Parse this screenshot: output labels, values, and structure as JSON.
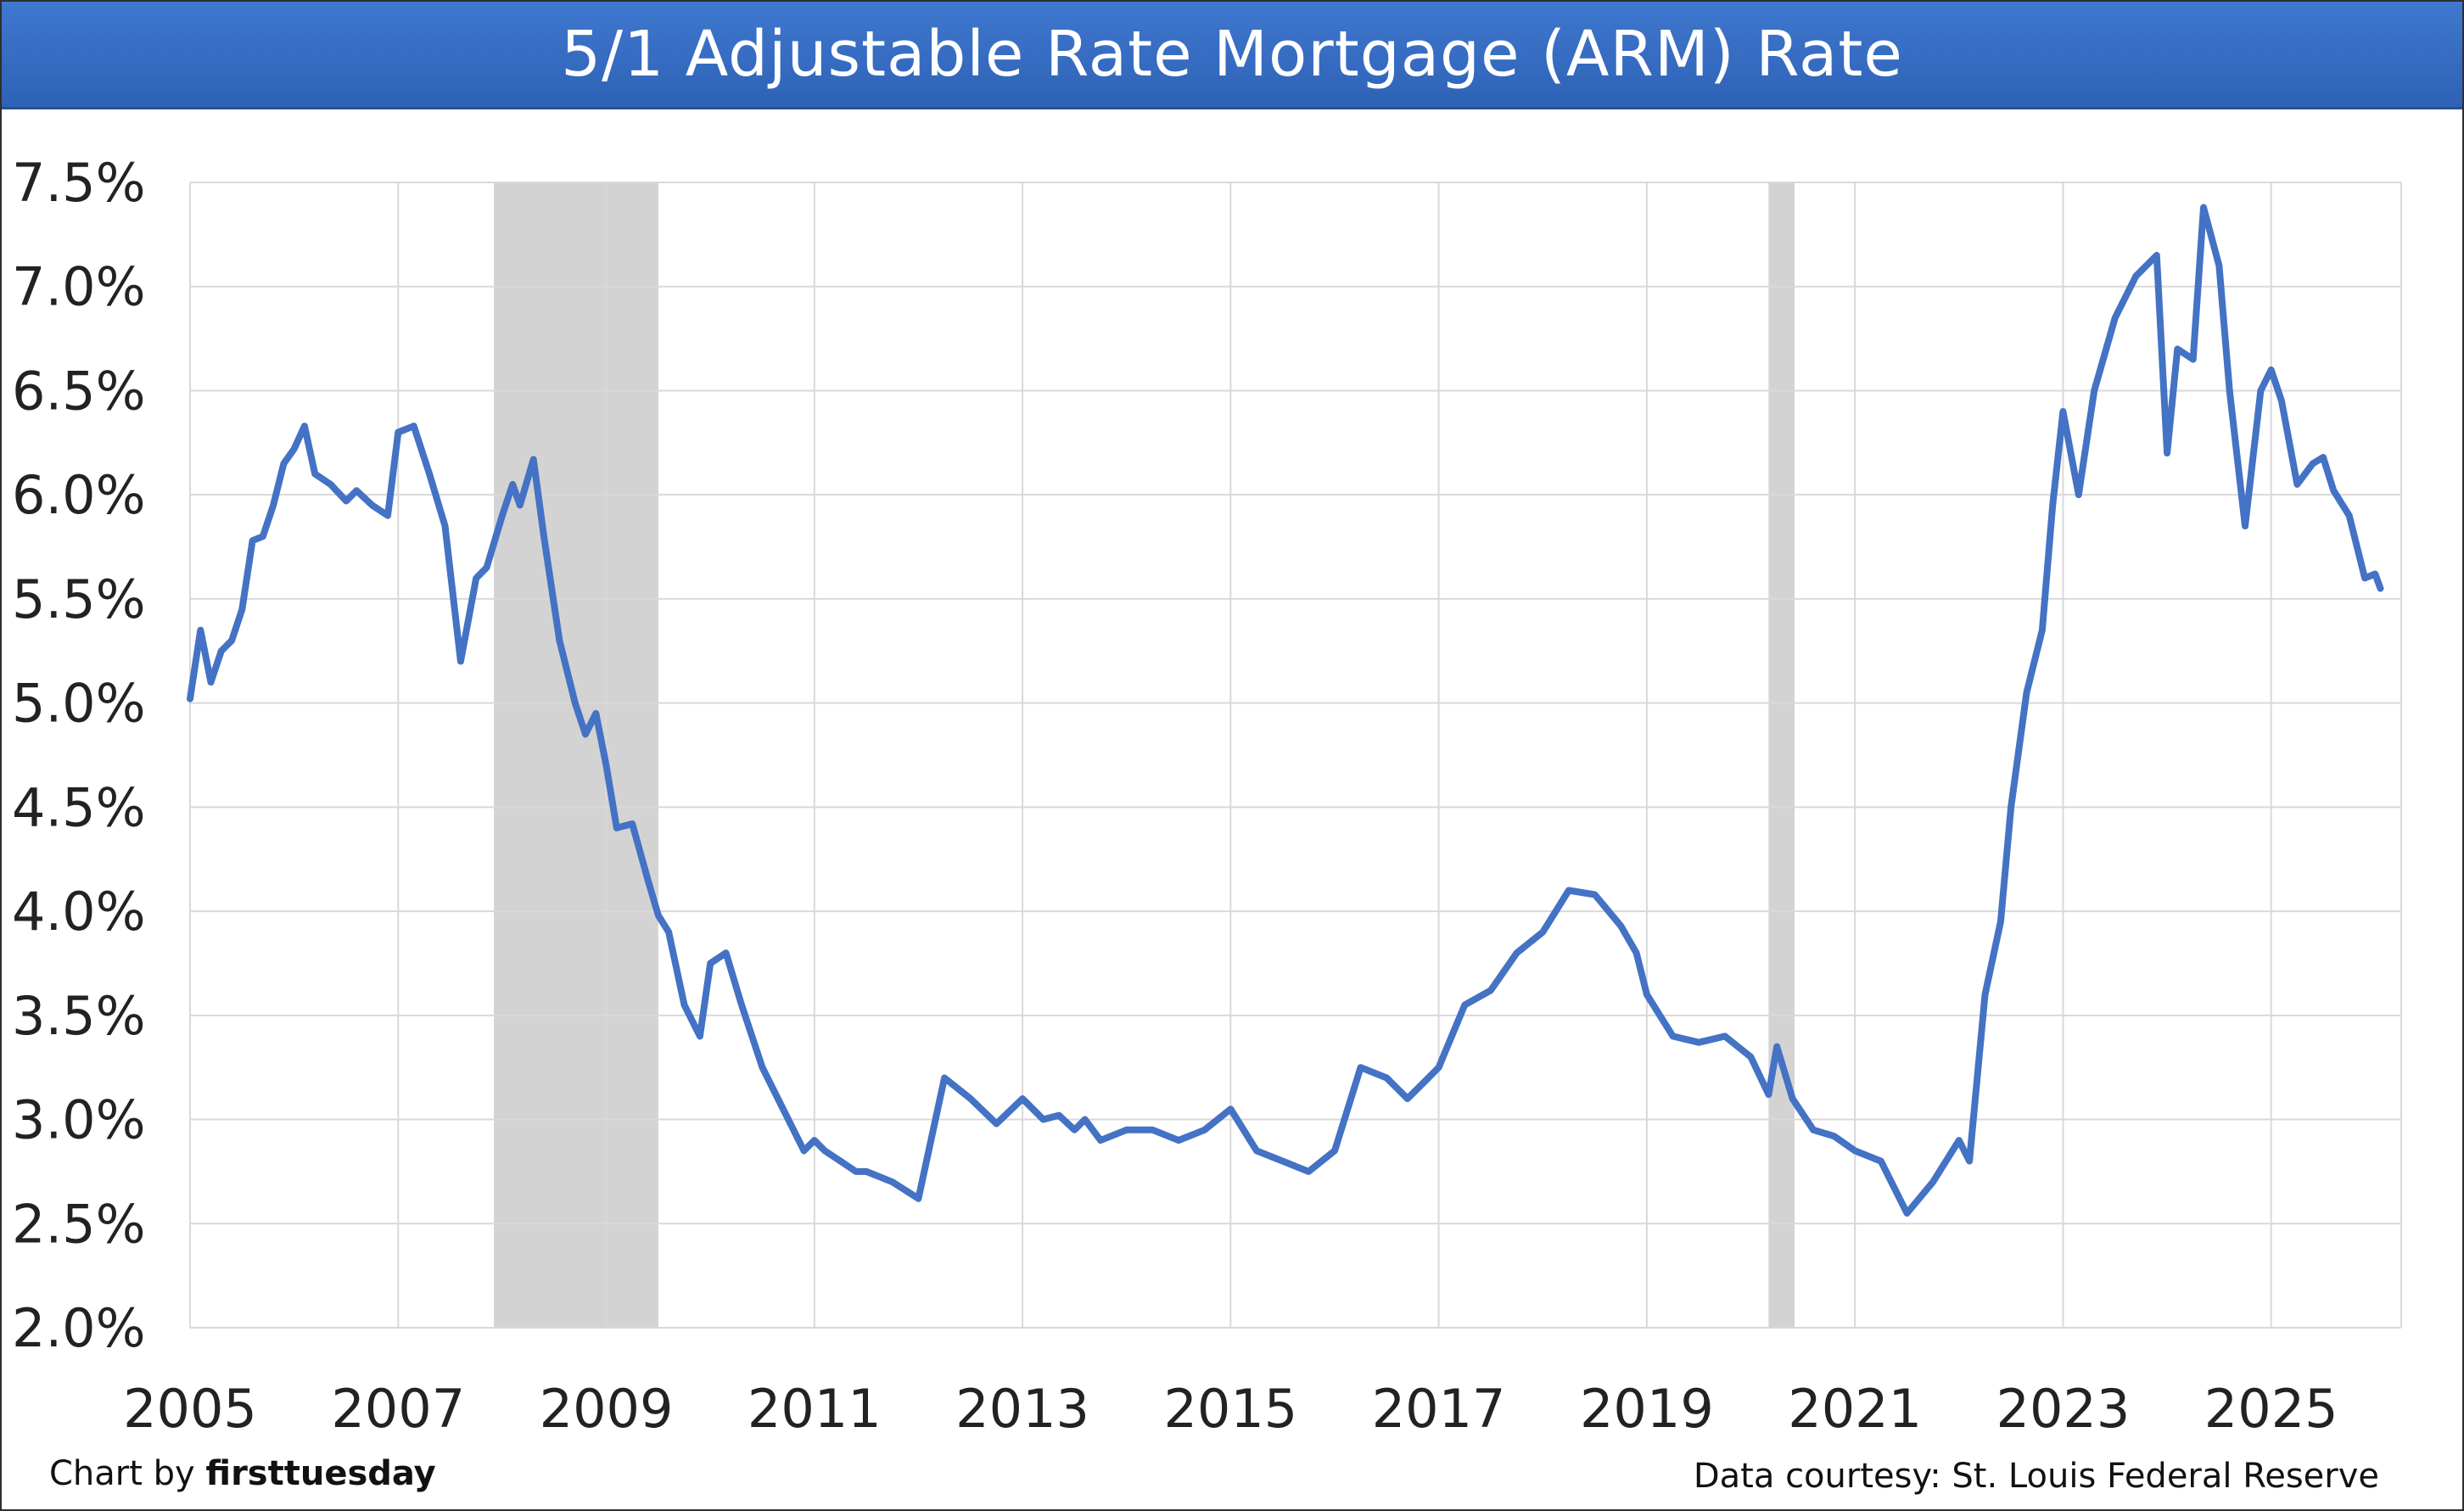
{
  "title": "5/1 Adjustable Rate Mortgage (ARM) Rate",
  "credit_prefix": "Chart by",
  "credit_brand": "firsttuesday",
  "source": "Data courtesy: St. Louis Federal Reserve",
  "colors": {
    "line": "#4472c4",
    "recession": "#d3d3d3",
    "grid": "#d9d9d9",
    "title_bg": "#3a6fc4"
  },
  "chart_data": {
    "type": "line",
    "title": "5/1 Adjustable Rate Mortgage (ARM) Rate",
    "xlim": [
      2005,
      2026.25
    ],
    "ylim": [
      2.0,
      7.5
    ],
    "x_ticks": [
      2005,
      2007,
      2009,
      2011,
      2013,
      2015,
      2017,
      2019,
      2021,
      2023,
      2025
    ],
    "x_tick_labels": [
      "2005",
      "2007",
      "2009",
      "2011",
      "2013",
      "2015",
      "2017",
      "2019",
      "2021",
      "2023",
      "2025"
    ],
    "y_ticks": [
      2.0,
      2.5,
      3.0,
      3.5,
      4.0,
      4.5,
      5.0,
      5.5,
      6.0,
      6.5,
      7.0,
      7.5
    ],
    "y_tick_labels": [
      "2.0%",
      "2.5%",
      "3.0%",
      "3.5%",
      "4.0%",
      "4.5%",
      "5.0%",
      "5.5%",
      "6.0%",
      "6.5%",
      "7.0%",
      "7.5%"
    ],
    "grid": true,
    "recession_bands": [
      [
        2007.92,
        2009.5
      ],
      [
        2020.17,
        2020.42
      ]
    ],
    "series": [
      {
        "x": [
          2005.0,
          2005.1,
          2005.2,
          2005.3,
          2005.4,
          2005.5,
          2005.6,
          2005.7,
          2005.8,
          2005.9,
          2006.0,
          2006.1,
          2006.2,
          2006.35,
          2006.5,
          2006.6,
          2006.75,
          2006.9,
          2007.0,
          2007.15,
          2007.3,
          2007.45,
          2007.6,
          2007.75,
          2007.85,
          2008.0,
          2008.1,
          2008.17,
          2008.3,
          2008.4,
          2008.55,
          2008.7,
          2008.8,
          2008.9,
          2009.0,
          2009.1,
          2009.25,
          2009.4,
          2009.5,
          2009.6,
          2009.75,
          2009.9,
          2010.0,
          2010.15,
          2010.3,
          2010.5,
          2010.7,
          2010.9,
          2011.0,
          2011.1,
          2011.25,
          2011.4,
          2011.5,
          2011.75,
          2012.0,
          2012.25,
          2012.5,
          2012.75,
          2013.0,
          2013.2,
          2013.35,
          2013.5,
          2013.6,
          2013.75,
          2014.0,
          2014.25,
          2014.5,
          2014.75,
          2015.0,
          2015.25,
          2015.5,
          2015.75,
          2016.0,
          2016.25,
          2016.5,
          2016.7,
          2016.9,
          2017.0,
          2017.25,
          2017.5,
          2017.75,
          2018.0,
          2018.25,
          2018.5,
          2018.75,
          2018.9,
          2019.0,
          2019.25,
          2019.5,
          2019.75,
          2020.0,
          2020.17,
          2020.25,
          2020.4,
          2020.6,
          2020.8,
          2021.0,
          2021.25,
          2021.5,
          2021.75,
          2022.0,
          2022.1,
          2022.25,
          2022.4,
          2022.5,
          2022.65,
          2022.8,
          2022.9,
          2023.0,
          2023.15,
          2023.3,
          2023.5,
          2023.7,
          2023.8,
          2023.9,
          2024.0,
          2024.1,
          2024.25,
          2024.35,
          2024.5,
          2024.6,
          2024.75,
          2024.9,
          2025.0,
          2025.1,
          2025.25,
          2025.4,
          2025.5,
          2025.6,
          2025.75,
          2025.9,
          2026.0,
          2026.05
        ],
        "y": [
          5.02,
          5.35,
          5.1,
          5.25,
          5.3,
          5.45,
          5.78,
          5.8,
          5.95,
          6.15,
          6.22,
          6.33,
          6.1,
          6.05,
          5.97,
          6.02,
          5.95,
          5.9,
          6.3,
          6.33,
          6.1,
          5.85,
          5.2,
          5.6,
          5.65,
          5.9,
          6.05,
          5.95,
          6.17,
          5.8,
          5.3,
          5.0,
          4.85,
          4.95,
          4.7,
          4.4,
          4.42,
          4.15,
          3.98,
          3.9,
          3.55,
          3.4,
          3.75,
          3.8,
          3.55,
          3.25,
          3.05,
          2.85,
          2.9,
          2.85,
          2.8,
          2.75,
          2.75,
          2.7,
          2.62,
          3.2,
          3.1,
          2.98,
          3.1,
          3.0,
          3.02,
          2.95,
          3.0,
          2.9,
          2.95,
          2.95,
          2.9,
          2.95,
          3.05,
          2.85,
          2.8,
          2.75,
          2.85,
          3.25,
          3.2,
          3.1,
          3.2,
          3.25,
          3.55,
          3.62,
          3.8,
          3.9,
          4.1,
          4.08,
          3.93,
          3.8,
          3.6,
          3.4,
          3.37,
          3.4,
          3.3,
          3.12,
          3.35,
          3.1,
          2.95,
          2.92,
          2.85,
          2.8,
          2.55,
          2.7,
          2.9,
          2.8,
          3.6,
          3.95,
          4.5,
          5.05,
          5.35,
          5.95,
          6.4,
          6.0,
          6.5,
          6.85,
          7.05,
          7.1,
          7.15,
          6.2,
          6.7,
          6.65,
          7.38,
          7.1,
          6.5,
          5.85,
          6.5,
          6.6,
          6.45,
          6.05,
          6.15,
          6.18,
          6.02,
          5.9,
          5.6,
          5.62,
          5.55
        ]
      }
    ]
  }
}
